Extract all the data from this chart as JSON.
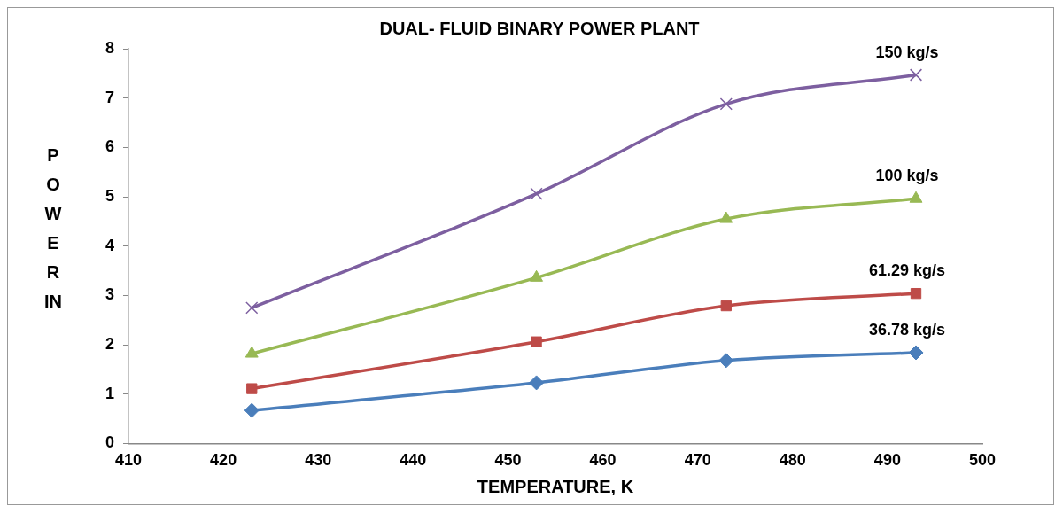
{
  "chart_data": {
    "type": "line",
    "title": "DUAL- FLUID BINARY POWER PLANT",
    "xlabel": "TEMPERATURE, K",
    "ylabel": "POWER IN",
    "x": [
      423,
      453,
      473,
      493
    ],
    "series": [
      {
        "name": "36.78 kg/s",
        "color": "#4a7ebb",
        "marker": "diamond",
        "values": [
          0.67,
          1.23,
          1.68,
          1.84
        ]
      },
      {
        "name": "61.29 kg/s",
        "color": "#be4b48",
        "marker": "square",
        "values": [
          1.11,
          2.06,
          2.79,
          3.04
        ]
      },
      {
        "name": "100 kg/s",
        "color": "#98b954",
        "marker": "triangle",
        "values": [
          1.82,
          3.36,
          4.55,
          4.96
        ]
      },
      {
        "name": "150 kg/s",
        "color": "#7d5fa0",
        "marker": "cross",
        "values": [
          2.75,
          5.06,
          6.88,
          7.47
        ]
      }
    ],
    "xlim": [
      410,
      500
    ],
    "xticks": [
      410,
      420,
      430,
      440,
      450,
      460,
      470,
      480,
      490,
      500
    ],
    "ylim": [
      0,
      8
    ],
    "yticks": [
      0,
      1,
      2,
      3,
      4,
      5,
      6,
      7,
      8
    ],
    "grid": false,
    "legend": false
  }
}
